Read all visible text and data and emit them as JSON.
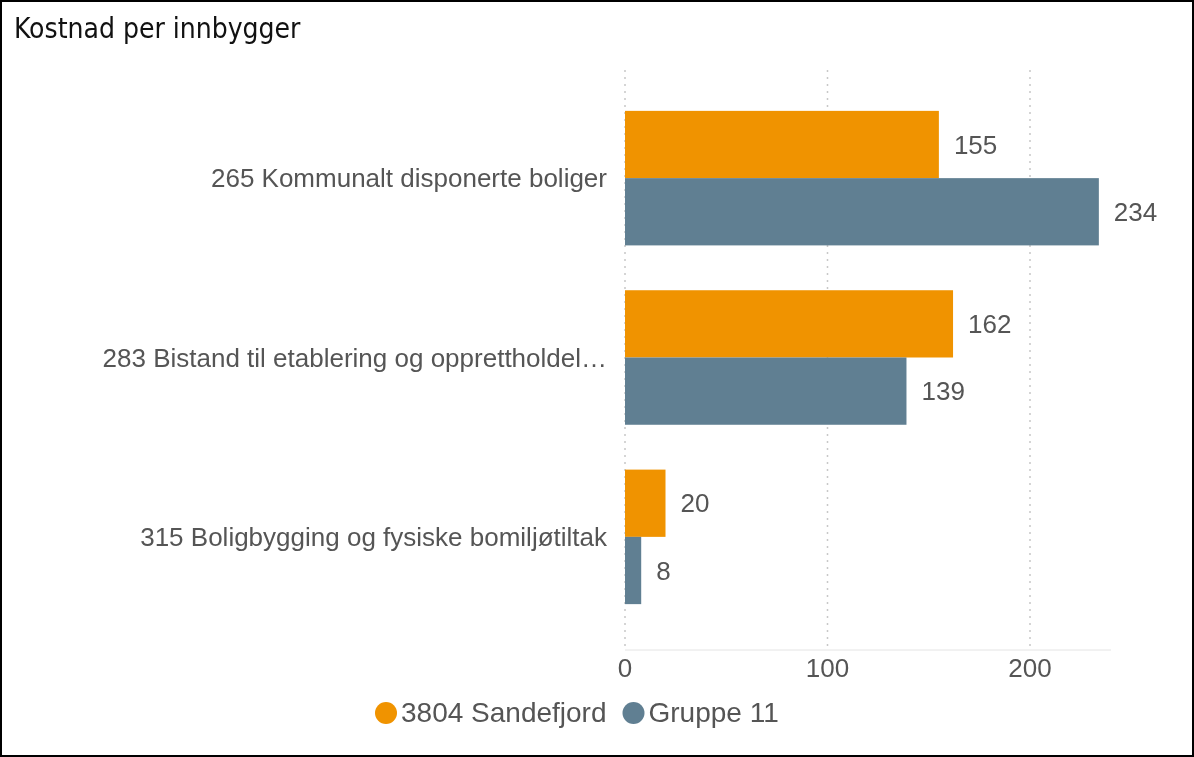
{
  "chart_data": {
    "type": "bar",
    "orientation": "horizontal",
    "title": "Kostnad per innbygger",
    "categories": [
      "265 Kommunalt disponerte boliger",
      "283 Bistand til etablering og opprettholdel…",
      "315 Boligbygging og fysiske bomiljøtiltak"
    ],
    "series": [
      {
        "name": "3804 Sandefjord",
        "color": "#f09300",
        "values": [
          155,
          162,
          20
        ]
      },
      {
        "name": "Gruppe 11",
        "color": "#607f92",
        "values": [
          234,
          139,
          8
        ]
      }
    ],
    "xlim": [
      0,
      240
    ],
    "xticks": [
      0,
      100,
      200
    ],
    "grid": "x",
    "legend": "bottom",
    "data_labels": true
  }
}
